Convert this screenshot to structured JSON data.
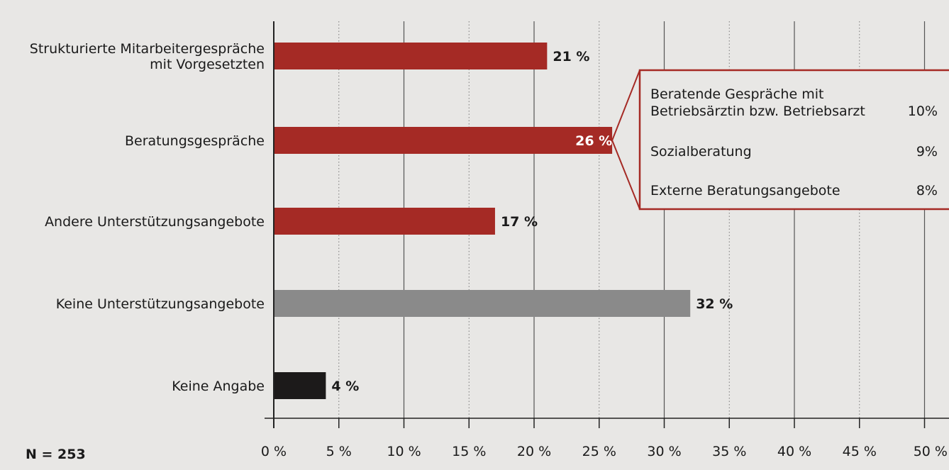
{
  "chart_data": {
    "type": "bar",
    "orientation": "horizontal",
    "categories": [
      [
        "Strukturierte Mitarbeitergespräche",
        "mit Vorgesetzten"
      ],
      [
        "Beratungsgespräche"
      ],
      [
        "Andere Unterstützungsangebote"
      ],
      [
        "Keine Unterstützungsangebote"
      ],
      [
        "Keine Angabe"
      ]
    ],
    "values": [
      21,
      26,
      17,
      32,
      4
    ],
    "value_labels": [
      "21 %",
      "26 %",
      "17 %",
      "32 %",
      "4 %"
    ],
    "bar_colors": [
      "#a52a25",
      "#a52a25",
      "#a52a25",
      "#8a8a8a",
      "#1c1a1a"
    ],
    "xlim": [
      0,
      50
    ],
    "x_ticks": [
      0,
      5,
      10,
      15,
      20,
      25,
      30,
      35,
      40,
      45,
      50
    ],
    "x_tick_labels": [
      "0 %",
      "5 %",
      "10 %",
      "15 %",
      "20 %",
      "25 %",
      "30 %",
      "35 %",
      "40 %",
      "45 %",
      "50 %"
    ],
    "grid": "vertical",
    "callout": {
      "parent": "Beratungsgespräche",
      "items": [
        {
          "lines": [
            "Beratende Gespräche mit",
            "Betriebsärztin bzw. Betriebsarzt"
          ],
          "value": "10%"
        },
        {
          "lines": [
            "Sozialberatung"
          ],
          "value": "9%"
        },
        {
          "lines": [
            "Externe Beratungsangebote"
          ],
          "value": "8%"
        }
      ]
    },
    "note": "N = 253"
  },
  "colors": {
    "background": "#e8e7e5",
    "accent": "#a52a25",
    "grey": "#8a8a8a",
    "dark": "#1c1a1a"
  }
}
